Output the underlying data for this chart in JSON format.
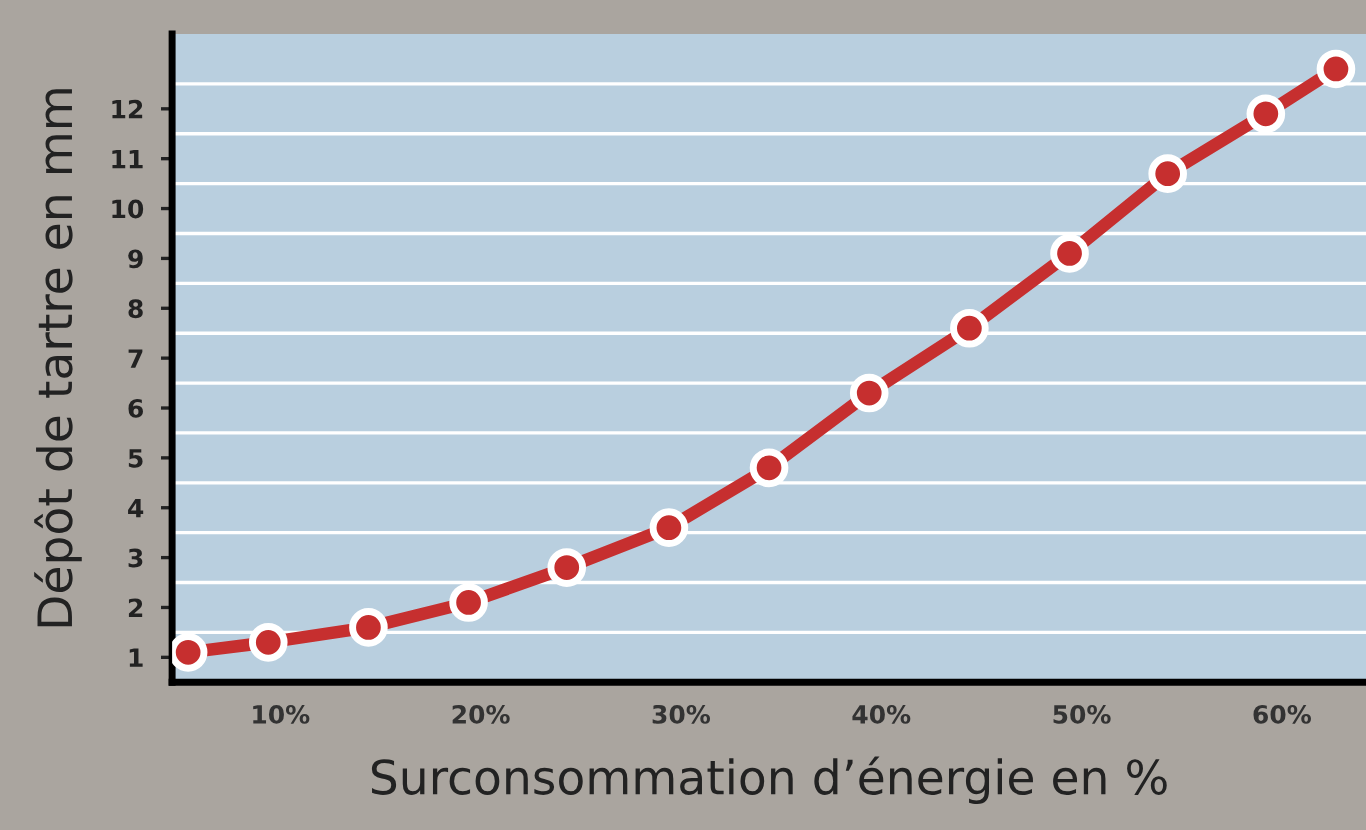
{
  "chart_data": {
    "type": "line",
    "xlabel": "Surconsommation d’énergie en %",
    "ylabel": "Dépôt de tartre en mm",
    "x": [
      5.4,
      9.4,
      14.4,
      19.4,
      24.3,
      29.4,
      34.4,
      39.4,
      44.4,
      49.4,
      54.3,
      59.2,
      62.7
    ],
    "series": [
      {
        "color": "#c62f2f",
        "values": [
          1.1,
          1.3,
          1.6,
          2.1,
          2.8,
          3.6,
          4.8,
          6.3,
          7.6,
          9.1,
          10.7,
          11.9,
          12.8
        ]
      }
    ],
    "xlim": [
      4.6,
      64.2
    ],
    "ylim": [
      0.5,
      13.5
    ],
    "xticks": [
      {
        "value": 10,
        "label": "10%"
      },
      {
        "value": 20,
        "label": "20%"
      },
      {
        "value": 30,
        "label": "30%"
      },
      {
        "value": 40,
        "label": "40%"
      },
      {
        "value": 50,
        "label": "50%"
      },
      {
        "value": 60,
        "label": "60%"
      }
    ],
    "yticks": [
      1,
      {
        "value": 1.5,
        "label": null
      },
      2,
      {
        "value": 2.5,
        "label": null
      },
      3,
      {
        "value": 3.5,
        "label": null
      },
      4,
      {
        "value": 4.5,
        "label": null
      },
      5,
      {
        "value": 5.5,
        "label": null
      },
      6,
      {
        "value": 6.5,
        "label": null
      },
      7,
      {
        "value": 7.5,
        "label": null
      },
      8,
      {
        "value": 8.5,
        "label": null
      },
      9,
      {
        "value": 9.5,
        "label": null
      },
      10,
      {
        "value": 10.5,
        "label": null
      },
      11,
      {
        "value": 11.5,
        "label": null
      },
      12,
      {
        "value": 12.5,
        "label": null
      }
    ],
    "grid": "y",
    "marker": "circle",
    "line_style": "solid",
    "legend": false
  }
}
